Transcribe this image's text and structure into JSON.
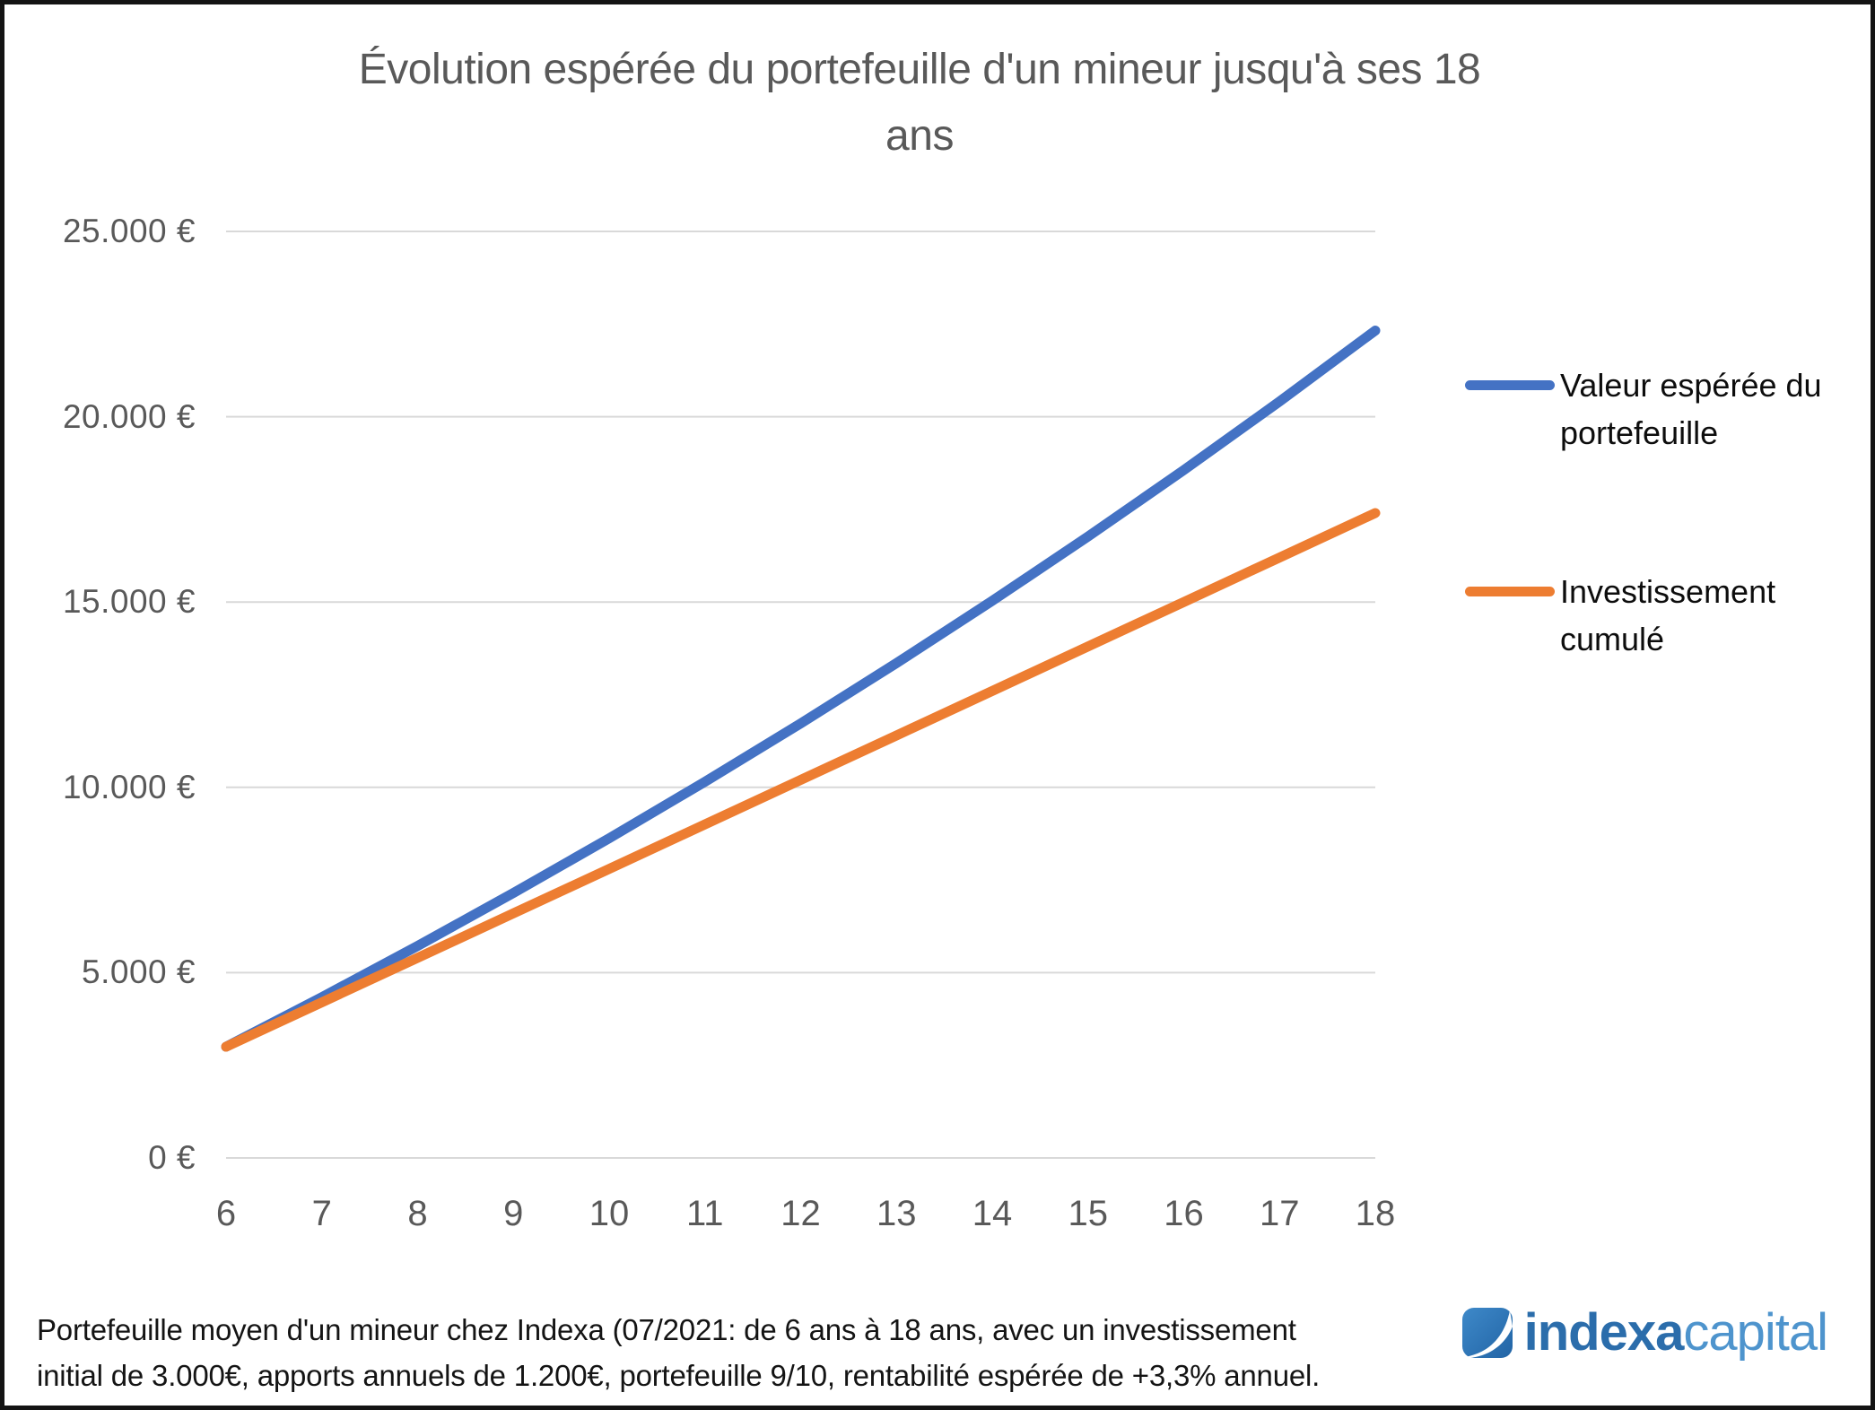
{
  "title": {
    "text": "Évolution espérée du portefeuille d'un mineur jusqu'à ses 18 ans",
    "line1": "Évolution espérée du portefeuille d'un mineur jusqu'à ses 18",
    "line2": "ans"
  },
  "legend": {
    "position": "right",
    "items": [
      {
        "label": "Valeur espérée du portefeuille",
        "color": "#4472C4"
      },
      {
        "label": "Investissement cumulé",
        "color": "#ED7D31"
      }
    ]
  },
  "footer": {
    "text": "Portefeuille moyen d'un mineur chez Indexa (07/2021: de 6 ans à 18 ans, avec un investissement initial de 3.000€, apports annuels de 1.200€, portefeuille 9/10, rentabilité espérée de +3,3% annuel.",
    "line1": "Portefeuille moyen d'un mineur chez Indexa (07/2021: de 6 ans à 18 ans, avec un investissement",
    "line2": "initial de 3.000€, apports annuels de 1.200€, portefeuille 9/10, rentabilité espérée de +3,3% annuel."
  },
  "logo": {
    "part1": "indexa",
    "part2": "capital",
    "icon": "indexa-swoosh-square",
    "color_dark": "#2b6dab",
    "color_light": "#4e94cd"
  },
  "colors": {
    "grid": "#d9d9d9",
    "axis_text": "#595959",
    "title_text": "#595959",
    "series_blue": "#4472C4",
    "series_orange": "#ED7D31"
  },
  "chart_data": {
    "type": "line",
    "title": "Évolution espérée du portefeuille d'un mineur jusqu'à ses 18 ans",
    "xlabel": "",
    "ylabel": "",
    "x": [
      6,
      7,
      8,
      9,
      10,
      11,
      12,
      13,
      14,
      15,
      16,
      17,
      18
    ],
    "x_range": [
      6,
      18
    ],
    "ylim": [
      0,
      25000
    ],
    "y_ticks": [
      {
        "value": 0,
        "label": "0 €"
      },
      {
        "value": 5000,
        "label": "5.000 €"
      },
      {
        "value": 10000,
        "label": "10.000 €"
      },
      {
        "value": 15000,
        "label": "15.000 €"
      },
      {
        "value": 20000,
        "label": "20.000 €"
      },
      {
        "value": 25000,
        "label": "25.000 €"
      }
    ],
    "grid": "horizontal",
    "legend_position": "right",
    "series": [
      {
        "name": "Valeur espérée du portefeuille",
        "color": "#4472C4",
        "values": [
          3000,
          4339,
          5721,
          7150,
          8625,
          10150,
          11724,
          13351,
          15031,
          16766,
          18559,
          20411,
          22325
        ]
      },
      {
        "name": "Investissement cumulé",
        "color": "#ED7D31",
        "values": [
          3000,
          4200,
          5400,
          6600,
          7800,
          9000,
          10200,
          11400,
          12600,
          13800,
          15000,
          16200,
          17400
        ]
      }
    ]
  }
}
